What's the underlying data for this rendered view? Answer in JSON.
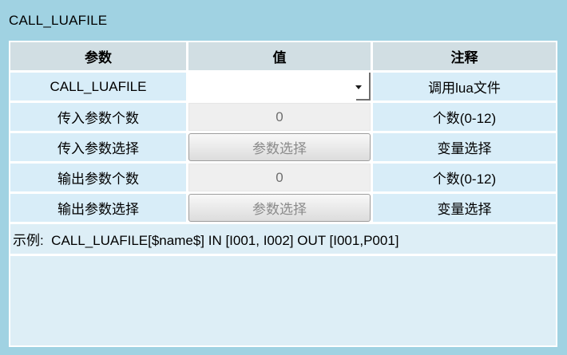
{
  "title": "CALL_LUAFILE",
  "table": {
    "headers": [
      "参数",
      "值",
      "注释"
    ],
    "rows": [
      {
        "param": "CALL_LUAFILE",
        "control": "combobox",
        "value": "",
        "comment": "调用lua文件"
      },
      {
        "param": "传入参数个数",
        "control": "textbox",
        "value": "0",
        "comment": "个数(0-12)"
      },
      {
        "param": "传入参数选择",
        "control": "button",
        "value": "参数选择",
        "comment": "变量选择"
      },
      {
        "param": "输出参数个数",
        "control": "textbox",
        "value": "0",
        "comment": "个数(0-12)"
      },
      {
        "param": "输出参数选择",
        "control": "button",
        "value": "参数选择",
        "comment": "变量选择"
      }
    ]
  },
  "example": {
    "text": "示例:  CALL_LUAFILE[$name$] IN [I001, I002] OUT [I001,P001]"
  },
  "icons": {
    "chevron_down": "▾"
  },
  "colors": {
    "background": "#a0d2e2",
    "header_cell": "#d1dee3",
    "label_cell": "#d8edf8",
    "panel_fill": "#ddeef6",
    "disabled_input_bg": "#efefef",
    "disabled_text": "#6e6e6e",
    "button_text": "#8a8a8a"
  }
}
